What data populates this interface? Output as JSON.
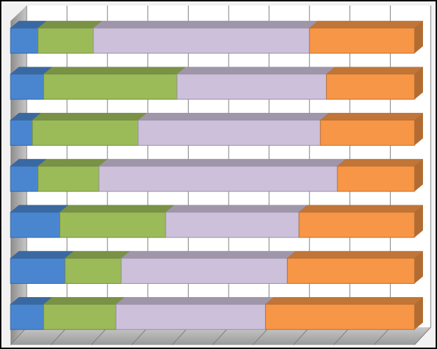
{
  "chart_data": {
    "type": "bar3d_stacked100",
    "categories": [
      null,
      null,
      null,
      null,
      null,
      null,
      null
    ],
    "series": [
      {
        "color": "#4a86d0",
        "values": [
          6.8,
          8.2,
          5.4,
          6.8,
          12.2,
          13.5,
          8.2
        ]
      },
      {
        "color": "#9bbb59",
        "values": [
          13.7,
          33.0,
          26.2,
          15.1,
          26.2,
          13.9,
          17.9
        ]
      },
      {
        "color": "#ccc0da",
        "values": [
          53.5,
          37.0,
          45.1,
          59.0,
          33.0,
          41.1,
          37.0
        ]
      },
      {
        "color": "#f79646",
        "values": [
          26.0,
          21.8,
          23.3,
          19.1,
          28.6,
          31.5,
          36.9
        ]
      }
    ],
    "xlim": [
      0,
      100
    ],
    "xticks": [
      0,
      10,
      20,
      30,
      40,
      50,
      60,
      70,
      80,
      90,
      100
    ],
    "grid": true
  }
}
